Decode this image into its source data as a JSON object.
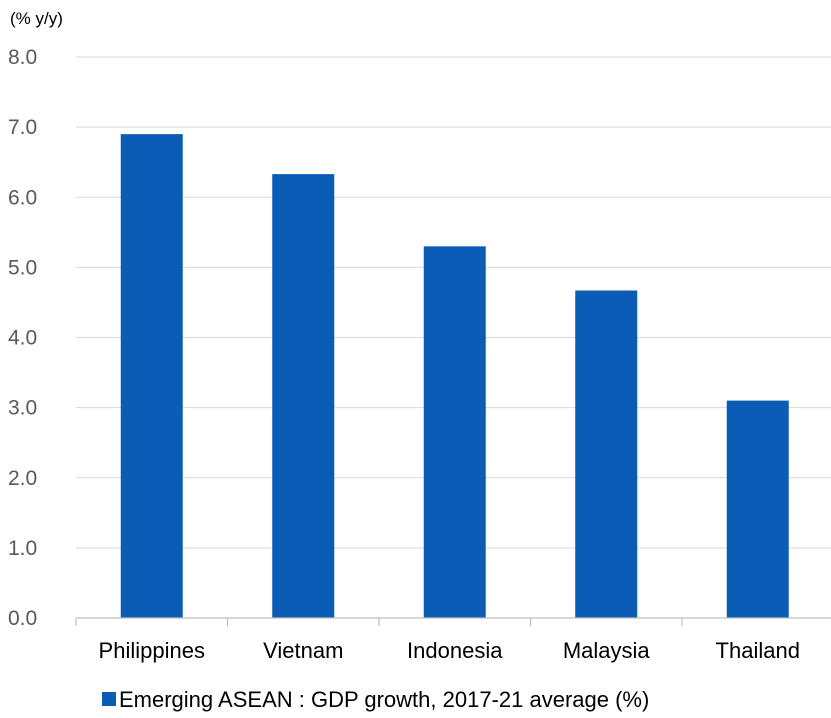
{
  "chart_data": {
    "type": "bar",
    "ylabel": "(% y/y)",
    "categories": [
      "Philippines",
      "Vietnam",
      "Indonesia",
      "Malaysia",
      "Thailand"
    ],
    "series": [
      {
        "name": "Emerging ASEAN : GDP growth, 2017-21 average (%)",
        "values": [
          6.9,
          6.33,
          5.3,
          4.67,
          3.1
        ]
      }
    ],
    "ylim": [
      0,
      8
    ],
    "yticks": [
      "0.0",
      "1.0",
      "2.0",
      "3.0",
      "4.0",
      "5.0",
      "6.0",
      "7.0",
      "8.0"
    ],
    "grid": true,
    "legend": "bottom",
    "colors": {
      "bar": "#0b5cb5",
      "grid": "#d9d9d9",
      "axis": "#bfbfbf"
    }
  }
}
